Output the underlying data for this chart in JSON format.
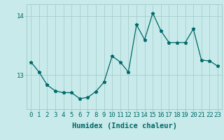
{
  "x": [
    0,
    1,
    2,
    3,
    4,
    5,
    6,
    7,
    8,
    9,
    10,
    11,
    12,
    13,
    14,
    15,
    16,
    17,
    18,
    19,
    20,
    21,
    22,
    23
  ],
  "y": [
    13.22,
    13.05,
    12.83,
    12.73,
    12.7,
    12.7,
    12.6,
    12.62,
    12.72,
    12.88,
    13.32,
    13.22,
    13.05,
    13.85,
    13.6,
    14.05,
    13.75,
    13.55,
    13.55,
    13.55,
    13.78,
    13.25,
    13.24,
    13.15
  ],
  "line_color": "#006868",
  "marker": "*",
  "marker_size": 3.5,
  "bg_color": "#c8eaea",
  "grid_color": "#a0c8c8",
  "xlabel": "Humidex (Indice chaleur)",
  "ylim": [
    12.42,
    14.2
  ],
  "xlim": [
    -0.5,
    23.5
  ],
  "yticks": [
    13,
    14
  ],
  "xticks": [
    0,
    1,
    2,
    3,
    4,
    5,
    6,
    7,
    8,
    9,
    10,
    11,
    12,
    13,
    14,
    15,
    16,
    17,
    18,
    19,
    20,
    21,
    22,
    23
  ],
  "xlabel_fontsize": 7.5,
  "tick_fontsize": 6.5,
  "linewidth": 0.9
}
